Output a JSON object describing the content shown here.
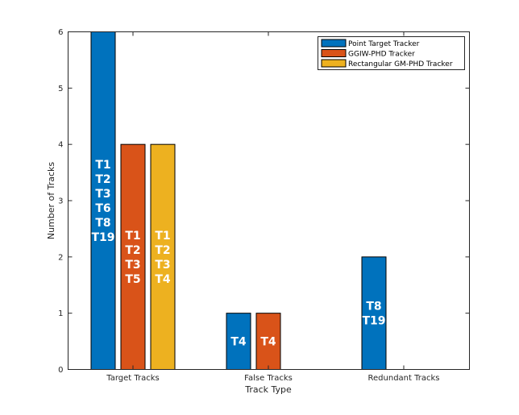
{
  "chart_data": {
    "type": "bar",
    "title": "",
    "xlabel": "Track Type",
    "ylabel": "Number of Tracks",
    "ylim": [
      0,
      6
    ],
    "yticks": [
      "0",
      "1",
      "2",
      "3",
      "4",
      "5",
      "6"
    ],
    "categories": [
      "Target Tracks",
      "False Tracks",
      "Redundant Tracks"
    ],
    "legend_position": "top-right",
    "series": [
      {
        "name": "Point Target Tracker",
        "color": "#0072BD",
        "values": [
          6,
          1,
          2
        ],
        "labels": [
          [
            "T1",
            "T2",
            "T3",
            "T6",
            "T8",
            "T19"
          ],
          [
            "T4"
          ],
          [
            "T8",
            "T19"
          ]
        ]
      },
      {
        "name": "GGIW-PHD Tracker",
        "color": "#D95319",
        "values": [
          4,
          1,
          0
        ],
        "labels": [
          [
            "T1",
            "T2",
            "T3",
            "T5"
          ],
          [
            "T4"
          ],
          []
        ]
      },
      {
        "name": "Rectangular GM-PHD Tracker",
        "color": "#EDB120",
        "values": [
          4,
          0,
          0
        ],
        "labels": [
          [
            "T1",
            "T2",
            "T3",
            "T4"
          ],
          [],
          []
        ]
      }
    ]
  }
}
